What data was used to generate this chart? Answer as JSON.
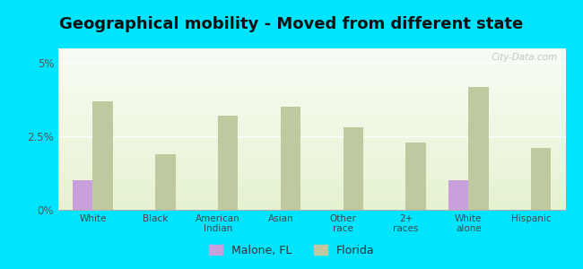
{
  "title": "Geographical mobility - Moved from different state",
  "categories": [
    "White",
    "Black",
    "American\nIndian",
    "Asian",
    "Other\nrace",
    "2+\nraces",
    "White\nalone",
    "Hispanic"
  ],
  "malone_values": [
    1.0,
    0.0,
    0.0,
    0.0,
    0.0,
    0.0,
    1.0,
    0.0
  ],
  "florida_values": [
    3.7,
    1.9,
    3.2,
    3.5,
    2.8,
    2.3,
    4.2,
    2.1
  ],
  "malone_color": "#c9a0dc",
  "florida_color": "#bec9a0",
  "background_outer": "#00e5ff",
  "ylim": [
    0,
    5.5
  ],
  "yticks": [
    0,
    2.5,
    5
  ],
  "ytick_labels": [
    "0%",
    "2.5%",
    "5%"
  ],
  "title_fontsize": 13,
  "bar_width": 0.32,
  "legend_malone": "Malone, FL",
  "legend_florida": "Florida",
  "watermark": "City-Data.com"
}
